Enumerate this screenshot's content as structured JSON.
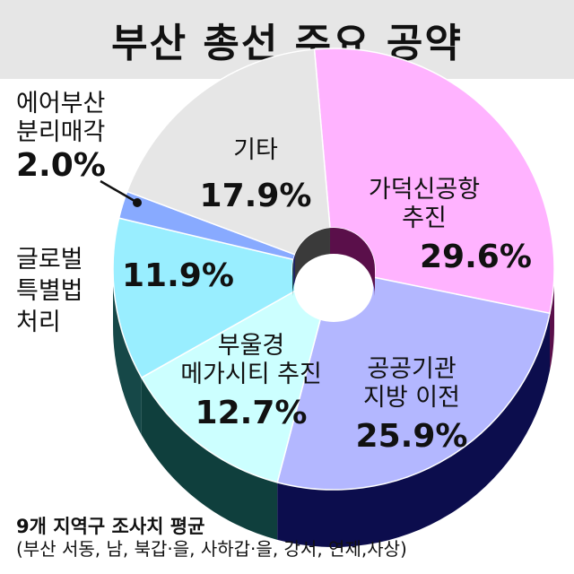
{
  "title": "부산 총선 주요 공약",
  "footnote": {
    "line1": "9개 지역구 조사치 평균",
    "line2": "(부산 서동, 남, 북갑·을, 사하갑·을, 강서, 연제,사상)"
  },
  "chart_data": {
    "type": "pie",
    "style": "3d-donut",
    "title": "부산 총선 주요 공약",
    "unit": "%",
    "slices": [
      {
        "label": "가덕신공항 추진",
        "value": 29.6,
        "color": "#ffb3ff",
        "side_color": "#5a0f4a"
      },
      {
        "label": "공공기관 지방 이전",
        "value": 25.9,
        "color": "#b3b7ff",
        "side_color": "#0c0d4d"
      },
      {
        "label": "부울경 메가시티 추진",
        "value": 12.7,
        "color": "#ccffff",
        "side_color": "#0f3f3d"
      },
      {
        "label": "글로벌 특별법 처리",
        "value": 11.9,
        "color": "#99eeff",
        "side_color": "#164848"
      },
      {
        "label": "에어부산 분리매각",
        "value": 2.0,
        "color": "#88aaff",
        "side_color": "#0c0d5c"
      },
      {
        "label": "기타",
        "value": 17.9,
        "color": "#e6e6e6",
        "side_color": "#3a3a3a"
      }
    ]
  },
  "labels": {
    "gadeok": {
      "line1": "가덕신공항",
      "line2": "추진",
      "pct": "29.6%"
    },
    "gonggong": {
      "line1": "공공기관",
      "line2": "지방 이전",
      "pct": "25.9%"
    },
    "buul": {
      "line1": "부울경",
      "line2": "메가시티 추진",
      "pct": "12.7%"
    },
    "global": {
      "line1": "글로벌",
      "line2": "특별법",
      "line3": "처리",
      "pct": "11.9%"
    },
    "airbusan": {
      "line1": "에어부산",
      "line2": "분리매각",
      "pct": "2.0%"
    },
    "gita": {
      "line1": "기타",
      "pct": "17.9%"
    }
  }
}
